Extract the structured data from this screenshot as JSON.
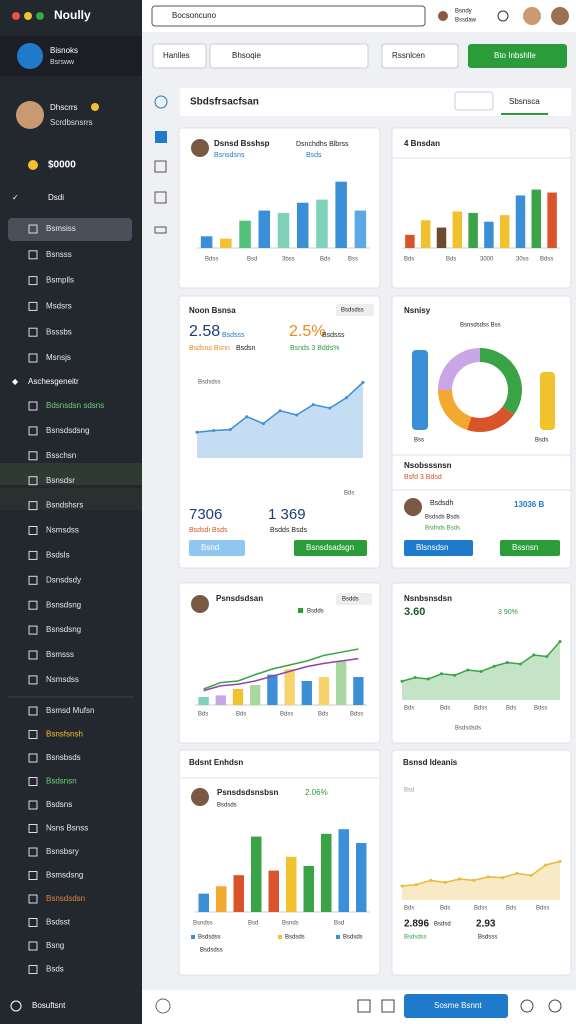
{
  "topbar": {
    "app": "Noully",
    "search": "Bocsoncuno",
    "user_name": "Bsndy",
    "user_sub": "Bssdaw"
  },
  "sidebar": {
    "brand": "Bisnoks",
    "brand_sub": "Bsrsww",
    "profile_name": "Dhscrrs",
    "profile_sub": "Scrdbsnsrrs",
    "balance": "$0000",
    "section1": "Dsdi",
    "items1": [
      "Bsmsiss",
      "Bsnsss",
      "Bsmplls",
      "Msdsrs",
      "Bsssbs",
      "Msnsjs"
    ],
    "section2": "Aschesgeneitr",
    "items2": [
      "Bdsnsdsn sdsns",
      "Bsnsdsdsng",
      "Bsschsn",
      "Bsnsdsr",
      "Bsndshsrs",
      "Nsmsdss",
      "Bsdsls",
      "Dsnsdsdy",
      "Bsnsdsng",
      "Bsnsdsng",
      "Bsmsss",
      "Nsmsdss"
    ],
    "items3": [
      "Bsmsd Mufsn",
      "Bsnsfsnsh",
      "Bsnsbsds",
      "Bsdsnsn",
      "Bsdsns",
      "Nsns Bsnss",
      "Bsnsbsry",
      "Bsmsdsng",
      "Bsnsdsdsn",
      "Bsdsst",
      "Bsng",
      "Bsds"
    ],
    "footer": "Bosuftsnt"
  },
  "toolbar": {
    "button1": "Hanlles",
    "input": "Bhsoqie",
    "select": "Rssnlcen",
    "action": "Bto Inbshlle"
  },
  "panel": {
    "title": "Sbdsfrsacfsan",
    "tab": "Sbsnsca"
  },
  "cards": [
    {
      "title": "Dsnsd Bsshsp",
      "subtitle": "Bsnsdsns",
      "right_title": "Dsnchdhs Blbrss",
      "right_sub": "Bsds",
      "x_labels": [
        "Bdss",
        "Bsd",
        "3bss",
        "Bds",
        "Bss"
      ],
      "chart": {
        "type": "bar",
        "ylim": [
          0,
          100
        ],
        "values": [
          15,
          12,
          35,
          48,
          45,
          58,
          62,
          85,
          48
        ],
        "colors": [
          "#3b8fd6",
          "#f2c12e",
          "#52c27a",
          "#3b8fd6",
          "#7fd1b9",
          "#3b8fd6",
          "#7fd1b9",
          "#3b8fd6",
          "#5aa9e6"
        ]
      }
    },
    {
      "title": "4 Bnsdan",
      "x_labels": [
        "Bds",
        "Bds",
        "3000",
        "30ss",
        "Bdss"
      ],
      "chart": {
        "type": "bar",
        "ylim": [
          0,
          100
        ],
        "values": [
          18,
          38,
          28,
          50,
          48,
          36,
          45,
          72,
          80,
          76
        ],
        "colors": [
          "#d9542b",
          "#f2c12e",
          "#6b4a2e",
          "#f2c12e",
          "#3aa346",
          "#3b8fd6",
          "#f2c12e",
          "#3b8fd6",
          "#3aa346",
          "#d9542b"
        ]
      }
    },
    {
      "title": "Noon Bsnsa",
      "chip": "Bsdsdss",
      "stat1": "2.58",
      "stat1_sub": "Bsdsss",
      "stat2": "2.5%",
      "stat2_sub": "Bsdsss",
      "note1": "Bsdsns Bsnn",
      "note1b": "Bsdsn",
      "note2": "Bsnds 3 Bdds%",
      "plot_label": "Bsdsdss",
      "x_label": "Bds",
      "big1": "7306",
      "big1_sub": "Bsdsdi Bsds",
      "big2": "1 369",
      "big2_sub": "Bsdds Bsds",
      "button1": "Bsnd",
      "button2": "Bsnsdsadsgn",
      "chart": {
        "type": "area",
        "ylim": [
          0,
          100
        ],
        "values": [
          30,
          32,
          33,
          48,
          40,
          55,
          50,
          62,
          58,
          70,
          88
        ],
        "color": "#3b8fd6"
      }
    },
    {
      "title": "Nsnisy",
      "label": "Bsnsdsdss Bss",
      "left_label": "Bss",
      "right_label": "Bsds",
      "chart": {
        "type": "donut",
        "values": [
          35,
          20,
          20,
          25
        ],
        "colors": [
          "#3aa346",
          "#d9542b",
          "#f2a92e",
          "#c9a6e8"
        ]
      }
    },
    {
      "title": "Nsobsssnsn",
      "subtitle": "Bsfd 3 Bdsd",
      "user": "Bsdsdh",
      "user_sub1": "Bsdsds Bsds",
      "user_sub2": "Bsdnds Bsds",
      "amount": "13036 B",
      "button1": "Blsnsdsn",
      "button2": "Bssnsn"
    },
    {
      "title": "Psnsdsdsan",
      "legend": "Bsdds",
      "chip": "Bsdds",
      "x_labels": [
        "Bds",
        "Bds",
        "Bdss",
        "Bds",
        "Bdss"
      ],
      "chart": {
        "type": "combo",
        "ylim": [
          0,
          100
        ],
        "values": [
          10,
          12,
          20,
          25,
          38,
          45,
          30,
          35,
          55,
          35
        ],
        "colors": [
          "#7fd1b9",
          "#c9a6e8",
          "#f2c12e",
          "#a8d8a0",
          "#3b8fd6",
          "#f7d36b",
          "#3b8fd6",
          "#f7d36b",
          "#a8d8a0",
          "#3b8fd6"
        ],
        "lines": [
          {
            "color": "#3aa346",
            "values": [
              20,
              28,
              30,
              38,
              45,
              50,
              55,
              62,
              66,
              70
            ]
          },
          {
            "color": "#8e44ad",
            "values": [
              18,
              24,
              26,
              30,
              36,
              42,
              48,
              52,
              55,
              58
            ]
          }
        ]
      }
    },
    {
      "title": "Nsnbsnsdsn",
      "stat": "3.60",
      "stat2": "3 90%",
      "x_labels": [
        "Bds",
        "Bds",
        "Bdss",
        "Bds",
        "Bdss"
      ],
      "x_title": "Bsdsdsds",
      "chart": {
        "type": "area",
        "ylim": [
          0,
          100
        ],
        "values": [
          25,
          30,
          28,
          35,
          33,
          40,
          38,
          45,
          50,
          48,
          60,
          58,
          78
        ],
        "color": "#3aa346"
      }
    },
    {
      "title": "Bdsnt Enhdsn",
      "subtitle": "Psnsdsdsnsbsn",
      "stat": "2.06%",
      "sub": "Bsdsds",
      "x_labels": [
        "Bsndss",
        "Bsd",
        "Bsnds",
        "Bsd"
      ],
      "legend": [
        "Bsdsdss",
        "Bsdsds",
        "Bsdsds",
        "Bsdsdss"
      ],
      "chart": {
        "type": "bar",
        "ylim": [
          0,
          100
        ],
        "values": [
          20,
          28,
          40,
          82,
          45,
          60,
          50,
          85,
          90,
          75
        ],
        "colors": [
          "#3b8fd6",
          "#f2a92e",
          "#d9542b",
          "#3aa346",
          "#d9542b",
          "#f2c12e",
          "#3aa346",
          "#3aa346",
          "#3b8fd6",
          "#3b8fd6"
        ]
      }
    },
    {
      "title": "Bsnsd Ideanis",
      "axis_note": "Bsd",
      "x_labels": [
        "Bds",
        "Bds",
        "Bdss",
        "Bds",
        "Bdss"
      ],
      "big1": "2.896",
      "big1_sub": "Bsdsd",
      "big2": "2.93",
      "legend1": "Bsdsdss",
      "legend2": "Bsdsss",
      "chart": {
        "type": "area",
        "ylim": [
          0,
          100
        ],
        "values": [
          20,
          22,
          28,
          25,
          30,
          28,
          33,
          32,
          38,
          35,
          50,
          55
        ],
        "color": "#e8b93a"
      }
    }
  ],
  "footer": {
    "button": "Sosme Bsnnt"
  }
}
